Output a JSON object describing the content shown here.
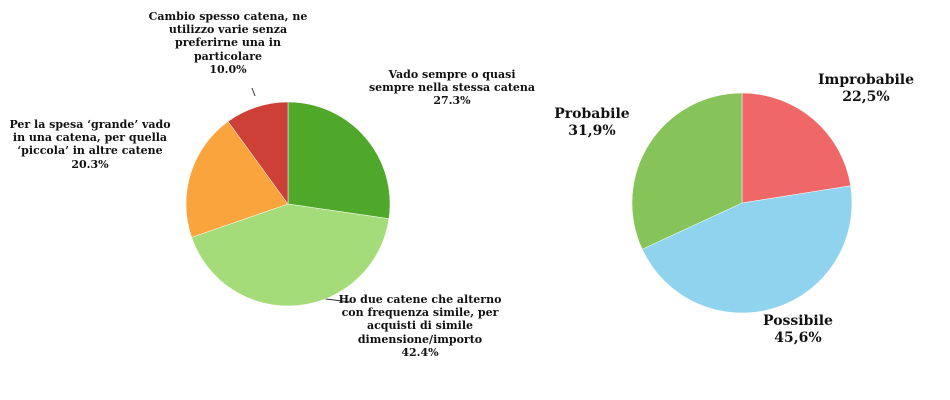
{
  "chart_data": [
    {
      "type": "pie",
      "categories": [
        "Vado sempre o quasi sempre nella stessa catena",
        "Ho due catene che alterno con frequenza simile, per acquisti di simile dimensione/importo",
        "Per la spesa ‘grande’ vado in una catena, per quella ‘piccola’ in altre catene",
        "Cambio spesso catena, ne utilizzo varie senza preferirne una in particolare"
      ],
      "values": [
        27.3,
        42.4,
        20.3,
        10.0
      ],
      "value_labels": [
        "27.3%",
        "42.4%",
        "20.3%",
        "10.0%"
      ],
      "colors": [
        "#4fa82a",
        "#a3dc78",
        "#f9a43c",
        "#cc4038"
      ]
    },
    {
      "type": "pie",
      "categories": [
        "Improbabile",
        "Possibile",
        "Probabile"
      ],
      "values": [
        22.5,
        45.6,
        31.9
      ],
      "value_labels": [
        "22,5%",
        "45,6%",
        "31,9%"
      ],
      "colors": [
        "#ef6766",
        "#8fd3ee",
        "#86c45a"
      ]
    }
  ]
}
